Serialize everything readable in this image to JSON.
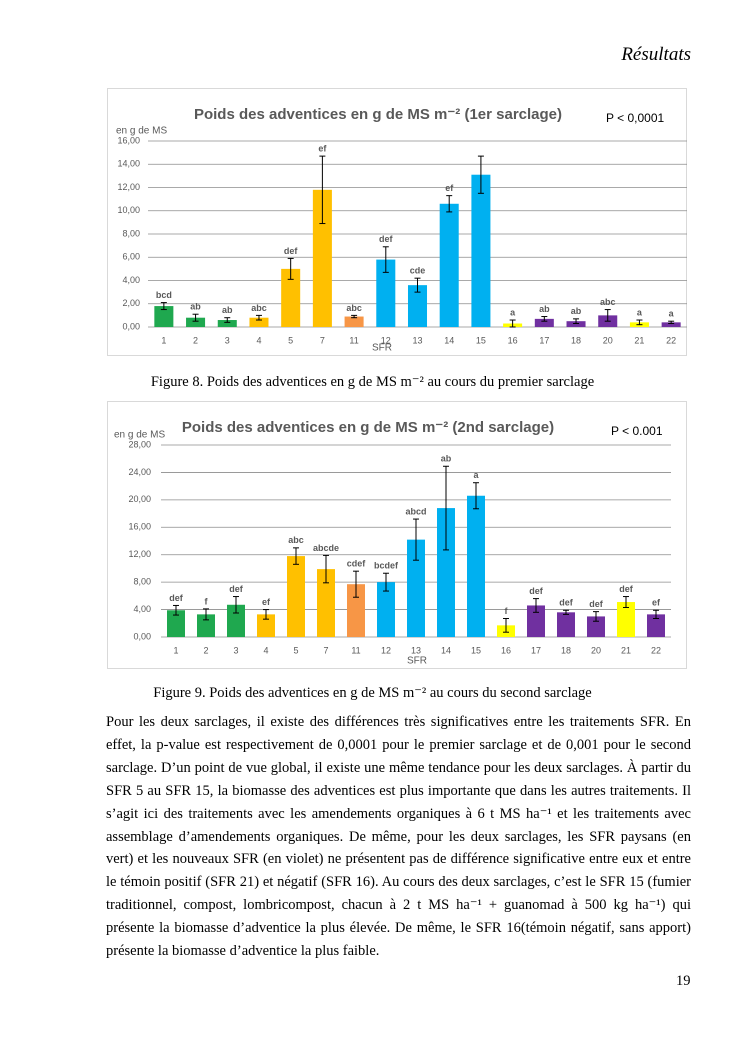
{
  "header": {
    "title": "Résultats"
  },
  "chart_data": [
    {
      "type": "bar",
      "title": "Poids des adventices en g de MS m⁻² (1er sarclage)",
      "annotation": "P < 0,0001",
      "y_label": "en g de MS",
      "x_label": "SFR",
      "categories": [
        "1",
        "2",
        "3",
        "4",
        "5",
        "7",
        "11",
        "12",
        "13",
        "14",
        "15",
        "16",
        "17",
        "18",
        "20",
        "21",
        "22"
      ],
      "values": [
        1.8,
        0.8,
        0.6,
        0.8,
        5.0,
        11.8,
        0.9,
        5.8,
        3.6,
        10.6,
        13.1,
        0.3,
        0.7,
        0.5,
        1.0,
        0.4,
        0.4
      ],
      "errors": [
        0.3,
        0.3,
        0.2,
        0.2,
        0.9,
        2.9,
        0.1,
        1.1,
        0.6,
        0.7,
        1.6,
        0.3,
        0.2,
        0.2,
        0.5,
        0.2,
        0.1
      ],
      "letters": [
        "bcd",
        "ab",
        "ab",
        "abc",
        "def",
        "ef",
        "abc",
        "def",
        "cde",
        "ef",
        null,
        "a",
        "ab",
        "ab",
        "abc",
        "a",
        "a"
      ],
      "colors": [
        "#1fa84f",
        "#1fa84f",
        "#1fa84f",
        "#ffc000",
        "#ffc000",
        "#ffc000",
        "#f79646",
        "#00b0f0",
        "#00b0f0",
        "#00b0f0",
        "#00b0f0",
        "#ffff00",
        "#7030a0",
        "#7030a0",
        "#7030a0",
        "#ffff00",
        "#7030a0"
      ],
      "ylim": [
        0,
        16
      ],
      "yticks": [
        {
          "value": 0,
          "label": "0,00"
        },
        {
          "value": 2,
          "label": "2,00"
        },
        {
          "value": 4,
          "label": "4,00"
        },
        {
          "value": 6,
          "label": "6,00"
        },
        {
          "value": 8,
          "label": "8,00"
        },
        {
          "value": 10,
          "label": "10,00"
        },
        {
          "value": 12,
          "label": "12,00"
        },
        {
          "value": 14,
          "label": "14,00"
        },
        {
          "value": 16,
          "label": "16,00"
        }
      ],
      "grid": true
    },
    {
      "type": "bar",
      "title": "Poids des adventices en g de MS m⁻² (2nd sarclage)",
      "annotation": "P < 0.001",
      "y_label": "en g de MS",
      "x_label": "SFR",
      "categories": [
        "1",
        "2",
        "3",
        "4",
        "5",
        "7",
        "11",
        "12",
        "13",
        "14",
        "15",
        "16",
        "17",
        "18",
        "20",
        "21",
        "22"
      ],
      "values": [
        3.9,
        3.3,
        4.7,
        3.3,
        11.8,
        9.9,
        7.7,
        8.0,
        14.2,
        18.8,
        20.6,
        1.7,
        4.6,
        3.6,
        3.0,
        5.1,
        3.3
      ],
      "errors": [
        0.7,
        0.8,
        1.2,
        0.7,
        1.2,
        2.0,
        1.9,
        1.3,
        3.0,
        6.1,
        1.9,
        1.0,
        1.0,
        0.3,
        0.7,
        0.8,
        0.6
      ],
      "letters": [
        "def",
        "f",
        "def",
        "ef",
        "abc",
        "abcde",
        "cdef",
        "bcdef",
        "abcd",
        "ab",
        "a",
        "f",
        "def",
        "def",
        "def",
        "def",
        "ef"
      ],
      "colors": [
        "#1fa84f",
        "#1fa84f",
        "#1fa84f",
        "#ffc000",
        "#ffc000",
        "#ffc000",
        "#f79646",
        "#00b0f0",
        "#00b0f0",
        "#00b0f0",
        "#00b0f0",
        "#ffff00",
        "#7030a0",
        "#7030a0",
        "#7030a0",
        "#ffff00",
        "#7030a0"
      ],
      "ylim": [
        0,
        28
      ],
      "yticks": [
        {
          "value": 0,
          "label": "0,00"
        },
        {
          "value": 4,
          "label": "4,00"
        },
        {
          "value": 8,
          "label": "8,00"
        },
        {
          "value": 12,
          "label": "12,00"
        },
        {
          "value": 16,
          "label": "16,00"
        },
        {
          "value": 20,
          "label": "20,00"
        },
        {
          "value": 24,
          "label": "24,00"
        },
        {
          "value": 28,
          "label": "28,00"
        }
      ],
      "grid": true
    }
  ],
  "captions": [
    "Figure 8. Poids des adventices en g de MS m⁻² au cours du premier sarclage",
    "Figure 9. Poids des adventices en g de MS m⁻² au cours du second sarclage"
  ],
  "paragraph": "Pour les deux sarclages, il existe des différences très significatives entre les traitements SFR. En effet, la p-value est respectivement de 0,0001 pour le premier sarclage et de 0,001 pour le second sarclage. D’un point de vue global, il existe une même tendance pour les deux sarclages. À partir du SFR 5 au SFR 15, la biomasse des adventices est plus importante que dans les autres traitements. Il s’agit ici des traitements avec les amendements organiques à 6 t MS ha⁻¹ et les traitements avec assemblage d’amendements organiques. De même, pour les deux sarclages, les SFR paysans (en vert) et les nouveaux SFR (en violet) ne présentent pas de différence significative entre eux et entre le témoin positif (SFR 21) et négatif (SFR 16). Au cours des deux sarclages, c’est le SFR 15 (fumier traditionnel, compost, lombricompost, chacun à 2 t MS ha⁻¹ + guanomad à 500 kg ha⁻¹) qui présente la biomasse d’adventice la plus élevée. De même, le SFR 16(témoin négatif, sans apport) présente la biomasse d’adventice la plus faible.",
  "page_number": "19"
}
